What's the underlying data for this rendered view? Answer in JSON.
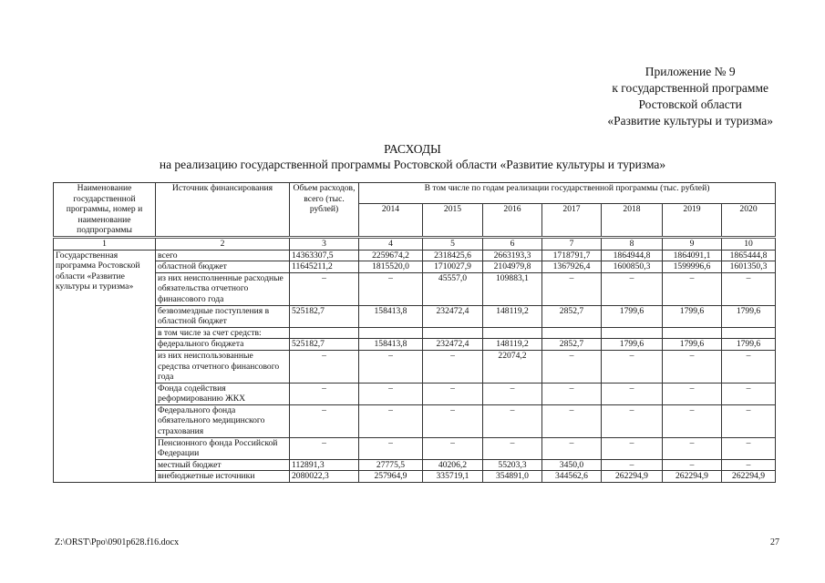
{
  "appendix": {
    "line1": "Приложение № 9",
    "line2": "к государственной программе",
    "line3": "Ростовской области",
    "line4": "«Развитие культуры и туризма»"
  },
  "title": {
    "main": "РАСХОДЫ",
    "sub": "на реализацию государственной программы Ростовской области «Развитие культуры и туризма»"
  },
  "table": {
    "headers": {
      "name": "Наименование государственной программы, номер и наименование подпрограммы",
      "source": "Источник финансирования",
      "total": "Объем расходов, всего (тыс. рублей)",
      "by_years": "В том числе по годам реализации государственной программы (тыс. рублей)",
      "years": [
        "2014",
        "2015",
        "2016",
        "2017",
        "2018",
        "2019",
        "2020"
      ]
    },
    "column_numbers": [
      "1",
      "2",
      "3",
      "4",
      "5",
      "6",
      "7",
      "8",
      "9",
      "10"
    ],
    "program_name": "Государственная программа Ростовской области «Развитие культуры и туризма»",
    "rows": [
      {
        "source": "всего",
        "values": [
          "14363307,5",
          "2259674,2",
          "2318425,6",
          "2663193,3",
          "1718791,7",
          "1864944,8",
          "1864091,1",
          "1865444,8"
        ]
      },
      {
        "source": "областной бюджет",
        "values": [
          "11645211,2",
          "1815520,0",
          "1710027,9",
          "2104979,8",
          "1367926,4",
          "1600850,3",
          "1599996,6",
          "1601350,3"
        ]
      },
      {
        "source": "из них неисполненные расходные обязательства отчетного финансового года",
        "values": [
          "–",
          "–",
          "45557,0",
          "109883,1",
          "–",
          "–",
          "–",
          "–"
        ]
      },
      {
        "source": "безвозмездные поступления в областной бюджет",
        "values": [
          "525182,7",
          "158413,8",
          "232472,4",
          "148119,2",
          "2852,7",
          "1799,6",
          "1799,6",
          "1799,6"
        ]
      },
      {
        "source": "в том числе за счет средств:",
        "values": [
          "",
          "",
          "",
          "",
          "",
          "",
          "",
          ""
        ]
      },
      {
        "source": "федерального бюджета",
        "values": [
          "525182,7",
          "158413,8",
          "232472,4",
          "148119,2",
          "2852,7",
          "1799,6",
          "1799,6",
          "1799,6"
        ]
      },
      {
        "source": "из них неиспользованные средства отчетного финансового года",
        "values": [
          "–",
          "–",
          "–",
          "22074,2",
          "–",
          "–",
          "–",
          "–"
        ]
      },
      {
        "source": "Фонда содействия реформированию ЖКХ",
        "values": [
          "–",
          "–",
          "–",
          "–",
          "–",
          "–",
          "–",
          "–"
        ]
      },
      {
        "source": "Федерального фонда обязательного медицинского страхования",
        "values": [
          "–",
          "–",
          "–",
          "–",
          "–",
          "–",
          "–",
          "–"
        ]
      },
      {
        "source": "Пенсионного фонда Российской Федерации",
        "values": [
          "–",
          "–",
          "–",
          "–",
          "–",
          "–",
          "–",
          "–"
        ]
      },
      {
        "source": "местный бюджет",
        "values": [
          "112891,3",
          "27775,5",
          "40206,2",
          "55203,3",
          "3450,0",
          "–",
          "–",
          "–"
        ]
      },
      {
        "source": "внебюджетные источники",
        "values": [
          "2080022,3",
          "257964,9",
          "335719,1",
          "354891,0",
          "344562,6",
          "262294,9",
          "262294,9",
          "262294,9"
        ]
      }
    ]
  },
  "footer": {
    "file_path": "Z:\\ORST\\Ppo\\0901p628.f16.docx",
    "page_number": "27"
  }
}
